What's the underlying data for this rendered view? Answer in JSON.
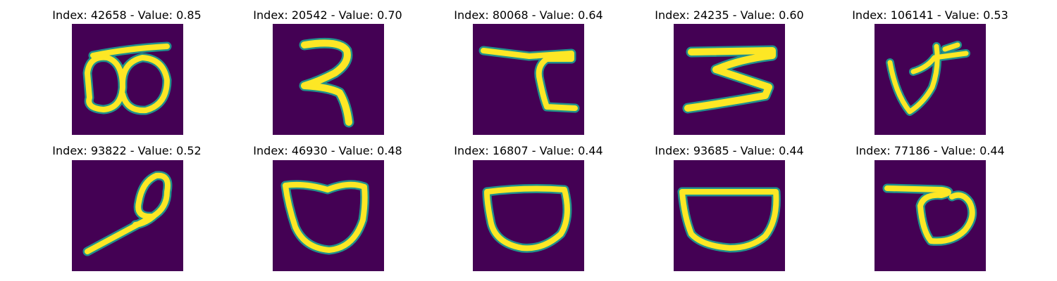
{
  "colors": {
    "background": "#440154",
    "stroke": "#fde725",
    "edge": "#21918c",
    "text": "#000000"
  },
  "panels": [
    {
      "title": "Index: 42658 - Value: 0.85",
      "glyph": "double-loop"
    },
    {
      "title": "Index: 20542 - Value: 0.70",
      "glyph": "hook-stroke"
    },
    {
      "title": "Index: 80068 - Value: 0.64",
      "glyph": "bar-with-hook"
    },
    {
      "title": "Index: 24235 - Value: 0.60",
      "glyph": "zigzag"
    },
    {
      "title": "Index: 106141 - Value: 0.53",
      "glyph": "v-with-tail"
    },
    {
      "title": "Index: 93822 - Value: 0.52",
      "glyph": "loop-with-tail"
    },
    {
      "title": "Index: 46930 - Value: 0.48",
      "glyph": "bowl"
    },
    {
      "title": "Index: 16807 - Value: 0.44",
      "glyph": "oval"
    },
    {
      "title": "Index: 93685 - Value: 0.44",
      "glyph": "wide-bowl"
    },
    {
      "title": "Index: 77186 - Value: 0.44",
      "glyph": "bar-with-loop"
    }
  ]
}
